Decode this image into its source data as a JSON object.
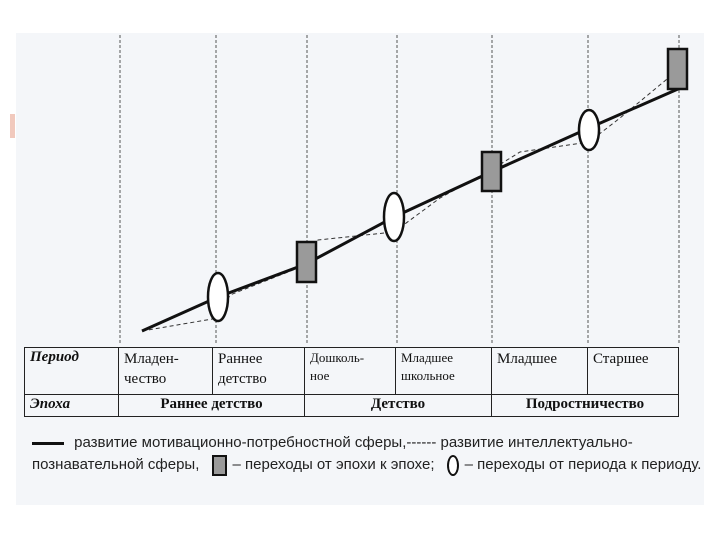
{
  "table": {
    "period_header": "Период",
    "epoch_header": "Эпоха",
    "periods": [
      {
        "line1": "Младен-",
        "line2": "чество"
      },
      {
        "line1": "Раннее",
        "line2": "детство"
      },
      {
        "line1": "Дошколь-",
        "line2": "ное"
      },
      {
        "line1": "Младшее",
        "line2": "школьное"
      },
      {
        "line1": "Младшее",
        "line2": ""
      },
      {
        "line1": "Старшее",
        "line2": ""
      }
    ],
    "epochs": [
      "Раннее детство",
      "Детство",
      "Подростничество"
    ]
  },
  "legend": {
    "solid_text": " развитие мотивационно-потребностной сферы,",
    "dashed_marker": "------",
    "dashed_text": " развитие интеллектуально-познавательной сферы,",
    "box_text": "– переходы от эпохи к эпохе;",
    "oval_text": "–  переходы от периода к периоду."
  },
  "colors": {
    "panel": "#f4f6f9",
    "line": "#111111",
    "box_fill": "#9a9a9a",
    "accent": "#f1c9bd"
  },
  "icons": [
    "box-transition-icon",
    "oval-transition-icon"
  ]
}
